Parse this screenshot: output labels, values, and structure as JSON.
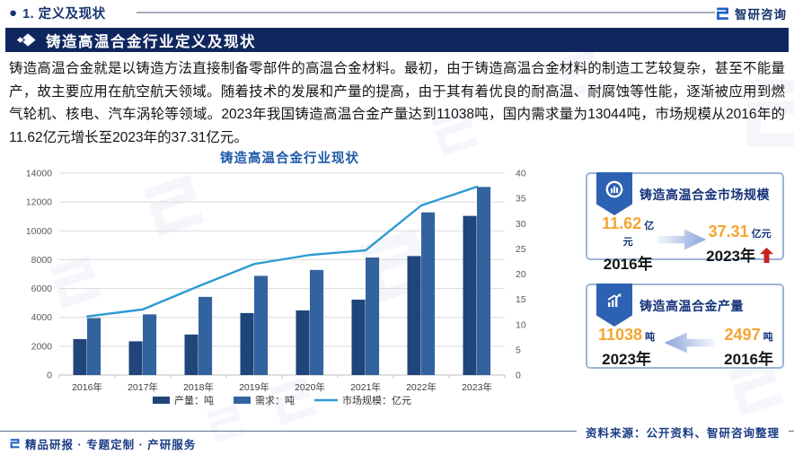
{
  "header": {
    "bullet": "●",
    "section_label": "1. 定义及现状",
    "brand_name": "智研咨询",
    "banner_title": "铸造高温合金行业定义及现状"
  },
  "intro_paragraph": "铸造高温合金就是以铸造方法直接制备零部件的高温合金材料。最初，由于铸造高温合金材料的制造工艺较复杂，甚至不能量产，故主要应用在航空航天领域。随着技术的发展和产量的提高，由于其有着优良的耐高温、耐腐蚀等性能，逐渐被应用到燃气轮机、核电、汽车涡轮等领域。2023年我国铸造高温合金产量达到11038吨，国内需求量为13044吨，市场规模从2016年的11.62亿元增长至2023年的37.31亿元。",
  "chart_data": {
    "type": "bar",
    "subtype": "combo-bar-line",
    "title": "铸造高温合金行业现状",
    "categories": [
      "2016年",
      "2017年",
      "2018年",
      "2019年",
      "2020年",
      "2021年",
      "2022年",
      "2023年"
    ],
    "series": [
      {
        "name": "产量：吨",
        "type": "bar",
        "axis": "left",
        "color": "#20457b",
        "values": [
          2497,
          2340,
          2810,
          4300,
          4480,
          5230,
          8250,
          11038
        ]
      },
      {
        "name": "需求：吨",
        "type": "bar",
        "axis": "left",
        "color": "#33639f",
        "values": [
          3950,
          4210,
          5420,
          6880,
          7290,
          8150,
          11280,
          13044
        ]
      },
      {
        "name": "市场规模：亿元",
        "type": "line",
        "axis": "right",
        "color": "#2d9ad3",
        "values": [
          11.62,
          13.0,
          17.6,
          22.0,
          23.8,
          24.7,
          33.6,
          37.31
        ]
      }
    ],
    "left_axis": {
      "min": 0,
      "max": 14000,
      "step": 2000
    },
    "right_axis": {
      "min": 0,
      "max": 40,
      "step": 5
    },
    "grid": true,
    "legend_position": "bottom"
  },
  "cards": [
    {
      "title": "铸造高温合金市场规模",
      "icon": "pie-chart-icon",
      "arrow_direction": "right",
      "trend_up": true,
      "start": {
        "value": "11.62",
        "unit": "亿元",
        "year": "2016年"
      },
      "end": {
        "value": "37.31",
        "unit": "亿元",
        "year": "2023年"
      }
    },
    {
      "title": "铸造高温合金产量",
      "icon": "trend-chart-icon",
      "arrow_direction": "left",
      "trend_up": false,
      "start": {
        "value": "11038",
        "unit": "吨",
        "year": "2023年"
      },
      "end": {
        "value": "2497",
        "unit": "吨",
        "year": "2016年"
      }
    }
  ],
  "footer": {
    "services": "精品研报 · 专题定制 · 产研服务",
    "source": "资料来源：公开资料、智研咨询整理"
  },
  "colors": {
    "banner_bg": "#10265e",
    "accent_navy": "#14327a",
    "chart_title_blue": "#1e5aa8",
    "bar_production": "#20457b",
    "bar_demand": "#33639f",
    "line_market": "#2d9ad3",
    "value_orange": "#f4a52f",
    "badge_blue": "#2d61b2",
    "up_arrow_red": "#c9211e"
  }
}
